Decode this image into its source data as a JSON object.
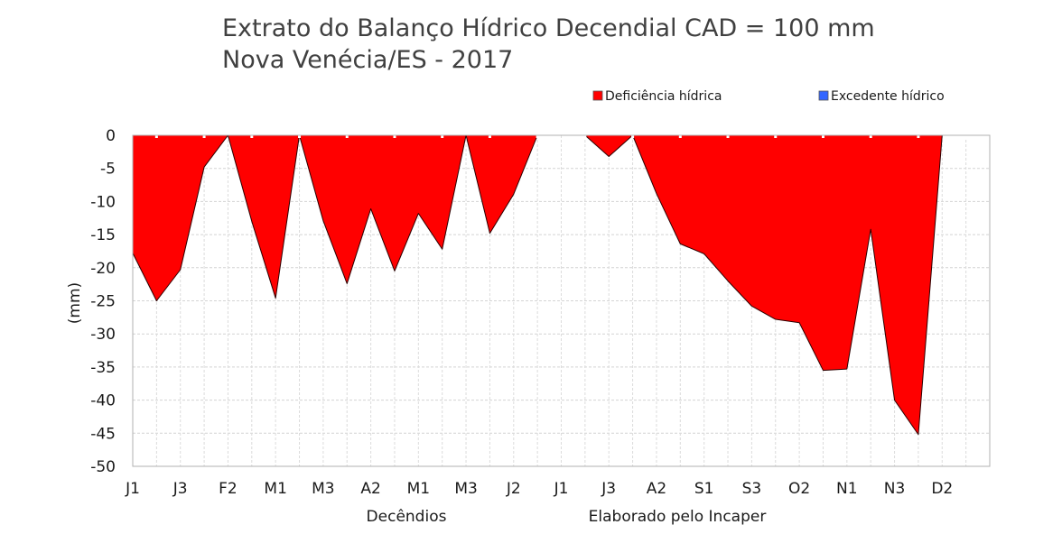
{
  "chart_data": {
    "type": "area",
    "title": "Extrato do Balanço Hídrico Decendial CAD = 100 mm",
    "subtitle": "Nova Venécia/ES - 2017",
    "xlabel": "Decêndios",
    "ylabel": "(mm)",
    "credit": "Elaborado pelo Incaper",
    "ylim": [
      -50,
      0
    ],
    "yticks": [
      0,
      -5,
      -10,
      -15,
      -20,
      -25,
      -30,
      -35,
      -40,
      -45,
      -50
    ],
    "grid": true,
    "legend_position": "top-right",
    "x_tick_labels": [
      "J1",
      "J3",
      "F2",
      "M1",
      "M3",
      "A2",
      "M1",
      "M3",
      "J2",
      "J1",
      "J3",
      "A2",
      "S1",
      "S3",
      "O2",
      "N1",
      "N3",
      "D2"
    ],
    "series": [
      {
        "name": "Deficiência hídrica",
        "color": "#ff0000",
        "values": [
          -17.8,
          -25,
          -20.3,
          -4.8,
          0,
          -13,
          -24.6,
          0,
          -12.9,
          -22.4,
          -11.1,
          -20.5,
          -11.8,
          -17.2,
          0,
          -14.8,
          -8.9,
          0,
          0,
          0,
          -3.2,
          0,
          -8.8,
          -16.4,
          -17.9,
          -22,
          -25.8,
          -27.8,
          -28.3,
          -35.5,
          -35.3,
          -14.2,
          -40,
          -45.2,
          0,
          0
        ]
      },
      {
        "name": "Excedente hídrico",
        "color": "#3366ff",
        "values": [
          0,
          0,
          0,
          0,
          0,
          0,
          0,
          0,
          0,
          0,
          0,
          0,
          0,
          0,
          0,
          0,
          0,
          0,
          0,
          0,
          0,
          0,
          0,
          0,
          0,
          0,
          0,
          0,
          0,
          0,
          0,
          0,
          0,
          0,
          0,
          0
        ]
      }
    ]
  }
}
